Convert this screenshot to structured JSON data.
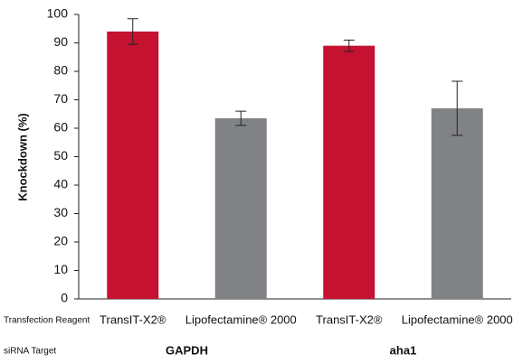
{
  "chart_data": {
    "type": "bar",
    "ylabel": "Knockdown (%)",
    "row_labels": [
      "Transfection Reagent",
      "siRNA Target"
    ],
    "categories": [
      "TransIT-X2®",
      "Lipofectamine® 2000",
      "TransIT-X2®",
      "Lipofectamine® 2000"
    ],
    "groups": [
      "GAPDH",
      "aha1"
    ],
    "values": [
      94,
      63.5,
      89,
      67
    ],
    "errors": [
      4.5,
      2.5,
      2,
      9.5
    ],
    "colors": [
      "#c41230",
      "#808285",
      "#c41230",
      "#808285"
    ],
    "ylim": [
      0,
      100
    ],
    "yticks": [
      0,
      10,
      20,
      30,
      40,
      50,
      60,
      70,
      80,
      90,
      100
    ]
  }
}
